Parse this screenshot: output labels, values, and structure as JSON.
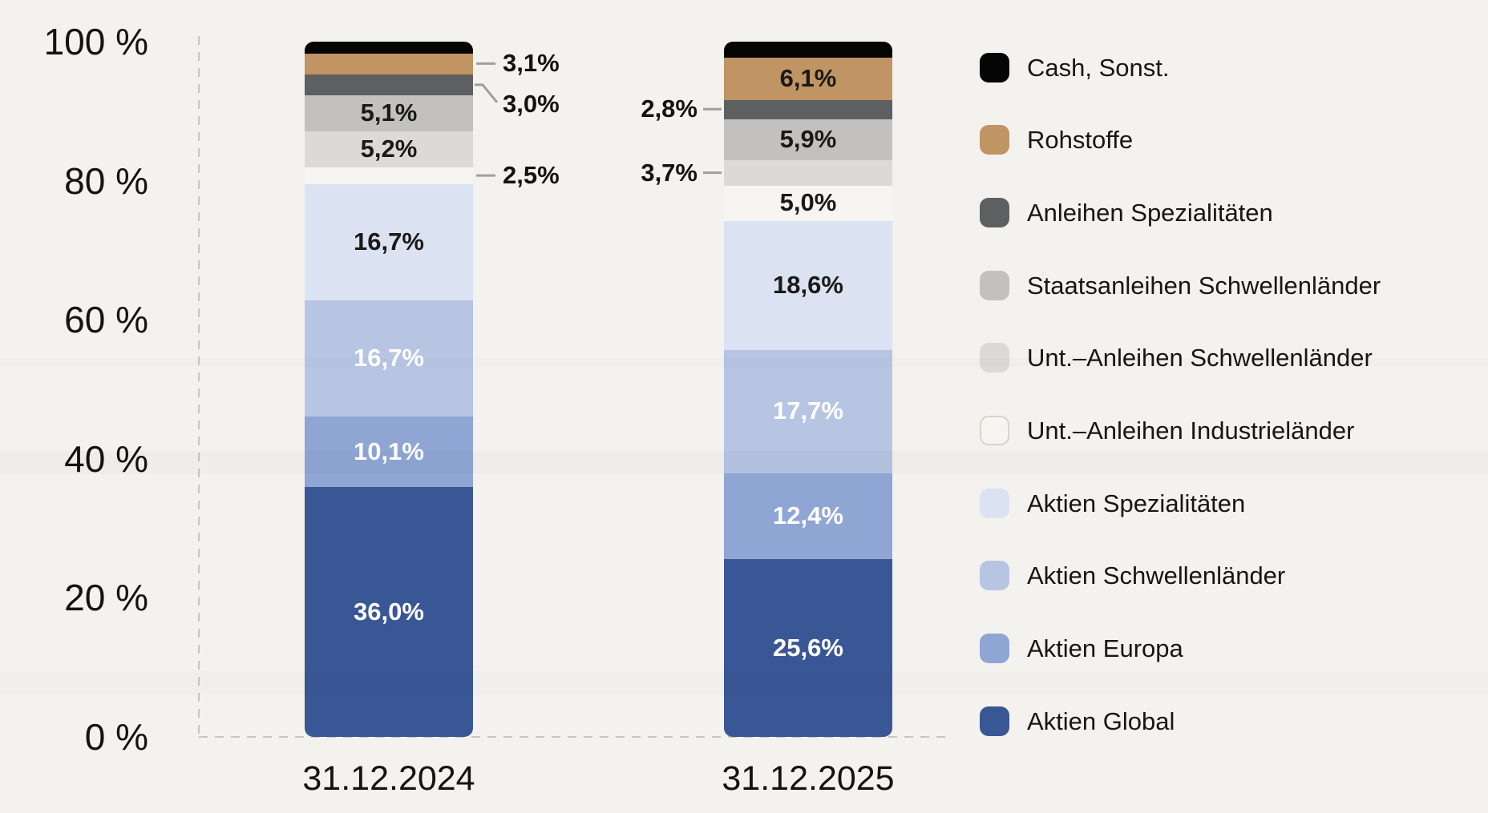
{
  "background_color": "#f4f2ef",
  "chart_data": {
    "type": "bar",
    "stacked": true,
    "value_unit": "%",
    "title": "",
    "categories": [
      "31.12.2024",
      "31.12.2025"
    ],
    "y_axis": {
      "min": 0,
      "max": 100,
      "grid": false,
      "ticks": [
        {
          "value": 0,
          "label": "0 %"
        },
        {
          "value": 20,
          "label": "20 %"
        },
        {
          "value": 40,
          "label": "40 %"
        },
        {
          "value": 60,
          "label": "60 %"
        },
        {
          "value": 80,
          "label": "80 %"
        },
        {
          "value": 100,
          "label": "100 %"
        }
      ]
    },
    "series": [
      {
        "name": "Aktien Global",
        "color": "#3a5795",
        "label_text_color": "#ffffff",
        "values": [
          36.0,
          25.6
        ],
        "labels": [
          "36,0%",
          "25,6%"
        ],
        "label_pos": [
          "inside",
          "inside"
        ]
      },
      {
        "name": "Aktien Europa",
        "color": "#8fa6d4",
        "label_text_color": "#ffffff",
        "values": [
          10.1,
          12.4
        ],
        "labels": [
          "10,1%",
          "12,4%"
        ],
        "label_pos": [
          "inside",
          "inside"
        ]
      },
      {
        "name": "Aktien Schwellenländer",
        "color": "#b7c5e3",
        "label_text_color": "#ffffff",
        "values": [
          16.7,
          17.7
        ],
        "labels": [
          "16,7%",
          "17,7%"
        ],
        "label_pos": [
          "inside",
          "inside"
        ]
      },
      {
        "name": "Aktien Spezialitäten",
        "color": "#dbe2f2",
        "label_text_color": "#1a1a1a",
        "values": [
          16.7,
          18.6
        ],
        "labels": [
          "16,7%",
          "18,6%"
        ],
        "label_pos": [
          "inside",
          "inside"
        ]
      },
      {
        "name": "Unt.–Anleihen Industrieländer",
        "color": "#f6f5f2",
        "label_text_color": "#1a1a1a",
        "values": [
          2.5,
          5.0
        ],
        "labels": [
          "2,5%",
          "5,0%"
        ],
        "label_pos": [
          "callout-right",
          "inside"
        ]
      },
      {
        "name": "Unt.–Anleihen Schwellenländer",
        "color": "#dbdad8",
        "label_text_color": "#1a1a1a",
        "values": [
          5.2,
          3.7
        ],
        "labels": [
          "5,2%",
          "3,7%"
        ],
        "label_pos": [
          "inside",
          "callout-left"
        ]
      },
      {
        "name": "Staatsanleihen Schwellenländer",
        "color": "#c2c1bf",
        "label_text_color": "#1a1a1a",
        "values": [
          5.1,
          5.9
        ],
        "labels": [
          "5,1%",
          "5,9%"
        ],
        "label_pos": [
          "inside",
          "inside"
        ]
      },
      {
        "name": "Anleihen Spezialitäten",
        "color": "#5e5f60",
        "label_text_color": "#1a1a1a",
        "values": [
          3.0,
          2.8
        ],
        "labels": [
          "3,0%",
          "2,8%"
        ],
        "label_pos": [
          "callout-right-elbow",
          "callout-left"
        ]
      },
      {
        "name": "Rohstoffe",
        "color": "#c09463",
        "label_text_color": "#1a1a1a",
        "values": [
          3.1,
          6.1
        ],
        "labels": [
          "3,1%",
          "6,1%"
        ],
        "label_pos": [
          "callout-right",
          "inside"
        ]
      },
      {
        "name": "Cash, Sonst.",
        "color": "#050505",
        "label_text_color": null,
        "values": [
          1.6,
          2.2
        ],
        "labels": [
          null,
          null
        ],
        "label_pos": [
          "none",
          "none"
        ]
      }
    ],
    "legend": {
      "position": "right",
      "items": [
        {
          "label": "Cash, Sonst.",
          "color": "#050505"
        },
        {
          "label": "Rohstoffe",
          "color": "#c09463"
        },
        {
          "label": "Anleihen Spezialitäten",
          "color": "#5e5f60"
        },
        {
          "label": "Staatsanleihen Schwellenländer",
          "color": "#c2c1bf"
        },
        {
          "label": "Unt.–Anleihen Schwellenländer",
          "color": "#dbdad8"
        },
        {
          "label": "Unt.–Anleihen Industrieländer",
          "color": "#f6f5f2",
          "border": "#d9d3c8"
        },
        {
          "label": "Aktien Spezialitäten",
          "color": "#dbe2f2"
        },
        {
          "label": "Aktien Schwellenländer",
          "color": "#b7c5e3"
        },
        {
          "label": "Aktien Europa",
          "color": "#8fa6d4"
        },
        {
          "label": "Aktien Global",
          "color": "#3a5795"
        }
      ]
    },
    "axis_style": {
      "dashed_line_color": "#c9c5bf",
      "callout_line_color": "#a29f99"
    }
  }
}
